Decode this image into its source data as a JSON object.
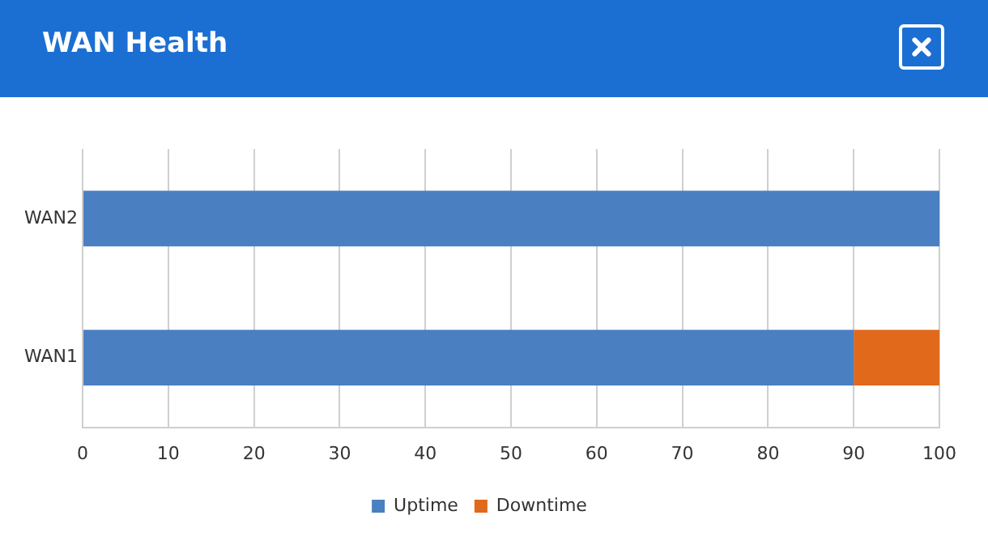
{
  "chart_data": {
    "type": "bar",
    "title": "WAN Health",
    "orientation": "horizontal",
    "stacked": true,
    "categories": [
      "WAN2",
      "WAN1"
    ],
    "series": [
      {
        "name": "Uptime",
        "color": "#4a7fc1",
        "values": [
          100,
          90
        ]
      },
      {
        "name": "Downtime",
        "color": "#e0691c",
        "values": [
          0,
          10
        ]
      }
    ],
    "xlim": [
      0,
      100
    ],
    "xticks": [
      0,
      10,
      20,
      30,
      40,
      50,
      60,
      70,
      80,
      90,
      100
    ],
    "grid": "x",
    "legend": "bottom"
  }
}
